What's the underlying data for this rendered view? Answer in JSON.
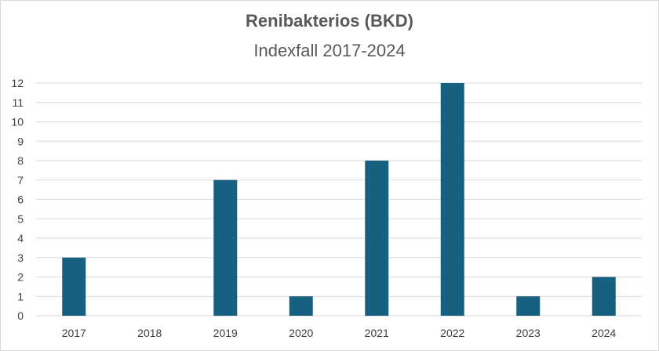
{
  "chart_data": {
    "type": "bar",
    "title": "Renibakterios (BKD)",
    "subtitle": "Indexfall 2017-2024",
    "categories": [
      "2017",
      "2018",
      "2019",
      "2020",
      "2021",
      "2022",
      "2023",
      "2024"
    ],
    "values": [
      3,
      0,
      7,
      1,
      8,
      12,
      1,
      2
    ],
    "xlabel": "",
    "ylabel": "",
    "ylim": [
      0,
      12
    ],
    "yticks": [
      "0",
      "1",
      "2",
      "3",
      "4",
      "5",
      "6",
      "7",
      "8",
      "9",
      "10",
      "11",
      "12"
    ],
    "grid": true,
    "legend": "none",
    "bar_color": "#17607f",
    "grid_color": "#d9d9d9"
  }
}
